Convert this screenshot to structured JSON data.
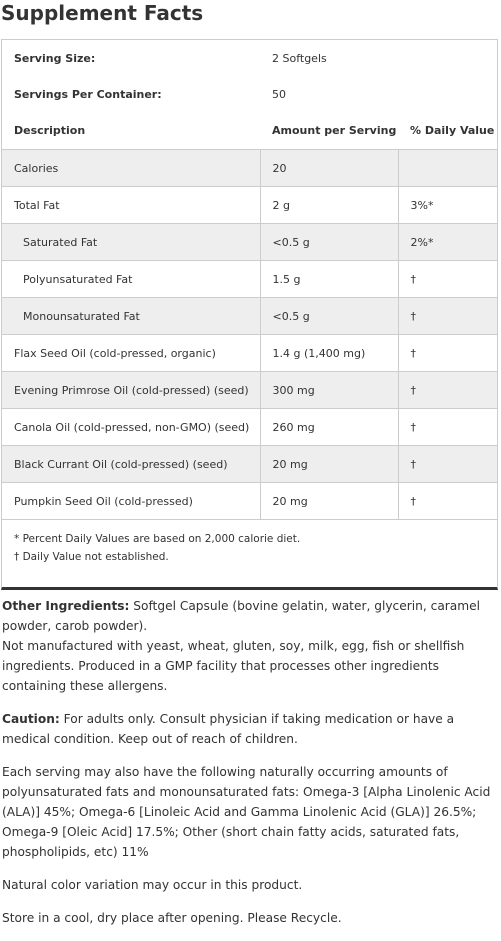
{
  "header": {
    "title": "Supplement Facts"
  },
  "facts": {
    "serving_size": {
      "label": "Serving Size:",
      "value": "2 Softgels"
    },
    "servings_per_container": {
      "label": "Servings Per Container:",
      "value": "50"
    },
    "columns": [
      "Description",
      "Amount per Serving",
      "% Daily Value"
    ],
    "rows": [
      {
        "name": "Calories",
        "amount": "20"
      },
      {
        "name": "Total Fat",
        "amount": "2 g",
        "dv": "3%*"
      },
      {
        "name": "Saturated Fat",
        "amount": "<0.5 g",
        "dv": "2%*"
      },
      {
        "name": "Polyunsaturated Fat",
        "amount": "1.5 g",
        "dv": "†"
      },
      {
        "name": "Monounsaturated Fat",
        "amount": "<0.5 g",
        "dv": "†"
      },
      {
        "name": "Flax Seed Oil (cold-pressed, organic)",
        "amount": "1.4 g (1,400 mg)",
        "dv": "†"
      },
      {
        "name": "Evening Primrose Oil (cold-pressed) (seed)",
        "amount": "300 mg",
        "dv": "†"
      },
      {
        "name": "Canola Oil (cold-pressed, non-GMO) (seed)",
        "amount": "260 mg",
        "dv": "†"
      },
      {
        "name": "Black Currant Oil (cold-pressed) (seed)",
        "amount": "20 mg",
        "dv": "†"
      },
      {
        "name": "Pumpkin Seed Oil (cold-pressed)",
        "amount": "20 mg",
        "dv": "†"
      }
    ],
    "footnotes": [
      "* Percent Daily Values are based on 2,000 calorie diet.",
      "† Daily Value not established."
    ]
  },
  "notes": {
    "other_ingredients": {
      "label": "Other Ingredients:",
      "text": "Softgel Capsule (bovine gelatin, water, glycerin, caramel powder, carob powder).",
      "extra": "Not manufactured with yeast, wheat, gluten, soy, milk, egg, fish or shellfish ingredients. Produced in a GMP facility that processes other ingredients containing these allergens."
    },
    "caution": {
      "label": "Caution:",
      "text": "For adults only. Consult physician if taking medication or have a medical condition. Keep out of reach of children."
    },
    "paragraphs": [
      "Each serving may also have the following naturally occurring amounts of polyunsaturated fats and monounsaturated fats: Omega-3 [Alpha Linolenic Acid (ALA)] 45%; Omega-6 [Linoleic Acid and Gamma Linolenic Acid (GLA)] 26.5%; Omega-9 [Oleic Acid] 17.5%; Other (short chain fatty acids, saturated fats, phospholipids, etc) 11%",
      "Natural color variation may occur in this product.",
      "Store in a cool, dry place after opening. Please Recycle."
    ]
  }
}
